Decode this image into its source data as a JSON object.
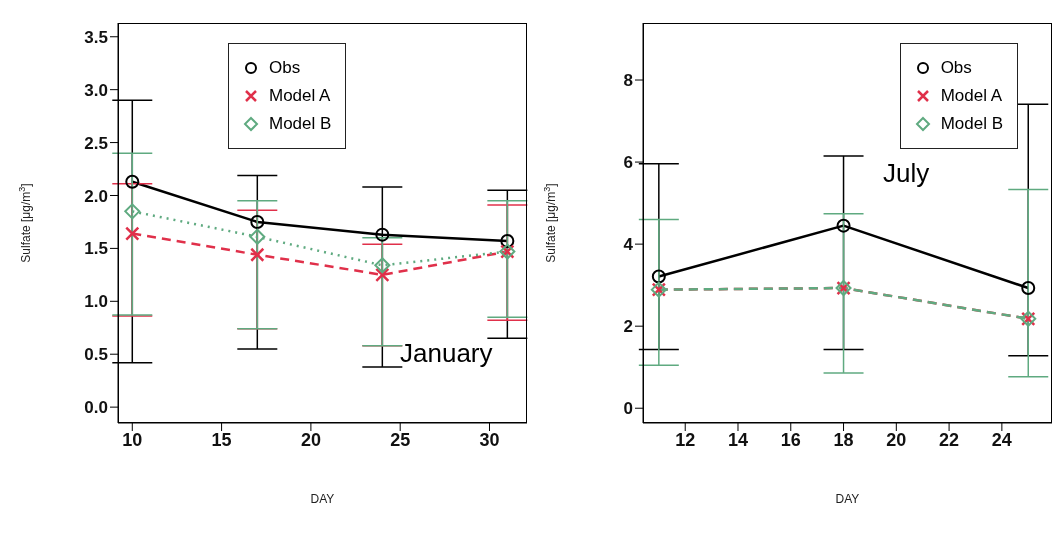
{
  "chart_data": [
    {
      "type": "line",
      "xlabel": "DAY",
      "ylabel": "Sulfate [μg/m$^{3}$]",
      "annotations": [
        "January"
      ],
      "legend": "top",
      "grid": false,
      "x": [
        10,
        17,
        24,
        31
      ],
      "xlim": [
        9.2,
        32.1
      ],
      "xticks": [
        10,
        15,
        20,
        25,
        30
      ],
      "ylim": [
        -0.15,
        3.63
      ],
      "yticks": [
        {
          "value": 0,
          "label": "0.0"
        },
        {
          "value": 0.5,
          "label": "0.5"
        },
        {
          "value": 1,
          "label": "1.0"
        },
        {
          "value": 1.5,
          "label": "1.5"
        },
        {
          "value": 2,
          "label": "2.0"
        },
        {
          "value": 2.5,
          "label": "2.5"
        },
        {
          "value": 3,
          "label": "3.0"
        },
        {
          "value": 3.5,
          "label": "3.5"
        }
      ],
      "series": [
        {
          "name": "Obs",
          "color": "#000000",
          "marker": "circle",
          "line_style": "solid",
          "values": [
            2.13,
            1.75,
            1.63,
            1.57
          ],
          "errors": [
            [
              0.42,
              2.9
            ],
            [
              0.55,
              2.19
            ],
            [
              0.38,
              2.08
            ],
            [
              0.65,
              2.05
            ]
          ]
        },
        {
          "name": "Model A",
          "color": "#e0304a",
          "marker": "cross",
          "line_style": "dashed",
          "values": [
            1.64,
            1.44,
            1.25,
            1.47
          ],
          "errors": [
            [
              0.86,
              2.11
            ],
            [
              0.74,
              1.86
            ],
            [
              0.58,
              1.54
            ],
            [
              0.82,
              1.91
            ]
          ]
        },
        {
          "name": "Model B",
          "color": "#5faa80",
          "marker": "diamond",
          "line_style": "dotted",
          "values": [
            1.85,
            1.61,
            1.34,
            1.47
          ],
          "errors": [
            [
              0.87,
              2.4
            ],
            [
              0.74,
              1.95
            ],
            [
              0.58,
              1.6
            ],
            [
              0.85,
              1.95
            ]
          ]
        }
      ]
    },
    {
      "type": "line",
      "xlabel": "DAY",
      "ylabel": "Sulfate [μg/m$^{3}$]",
      "annotations": [
        "July"
      ],
      "legend": "top right",
      "grid": false,
      "x": [
        11,
        18,
        25
      ],
      "xlim": [
        10.4,
        25.9
      ],
      "xticks": [
        12,
        14,
        16,
        18,
        20,
        22,
        24
      ],
      "ylim": [
        -0.36,
        9.39
      ],
      "yticks": [
        0,
        2,
        4,
        6,
        8
      ],
      "series": [
        {
          "name": "Obs",
          "color": "#000000",
          "marker": "circle",
          "line_style": "solid",
          "values": [
            3.21,
            4.45,
            2.93
          ],
          "errors": [
            [
              1.43,
              5.96
            ],
            [
              1.43,
              6.15
            ],
            [
              1.28,
              7.41
            ]
          ]
        },
        {
          "name": "Model A",
          "color": "#e0304a",
          "marker": "cross",
          "line_style": "dashed",
          "values": [
            2.89,
            2.93,
            2.18
          ]
        },
        {
          "name": "Model B",
          "color": "#5faa80",
          "marker": "diamond",
          "line_style": "dashed",
          "values": [
            2.89,
            2.93,
            2.18
          ],
          "errors": [
            [
              1.05,
              4.6
            ],
            [
              0.86,
              4.74
            ],
            [
              0.77,
              5.33
            ]
          ]
        }
      ]
    }
  ]
}
